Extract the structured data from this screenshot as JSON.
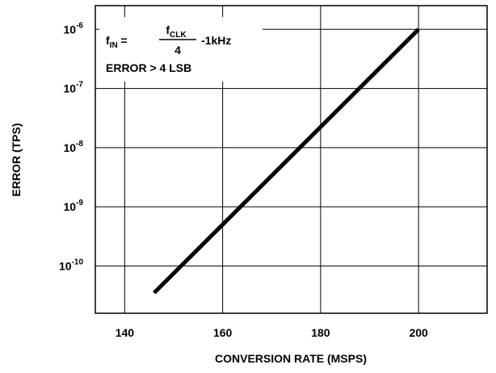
{
  "chart_data": {
    "type": "line",
    "title": "",
    "xlabel": "CONVERSION RATE (MSPS)",
    "ylabel": "ERROR (TPS)",
    "xlim": [
      134,
      214
    ],
    "ylim_exponent": [
      -10.8,
      -5.6
    ],
    "y_scale": "log",
    "grid": true,
    "x_ticks": [
      {
        "value": 140,
        "label": "140"
      },
      {
        "value": 160,
        "label": "160"
      },
      {
        "value": 180,
        "label": "180"
      },
      {
        "value": 200,
        "label": "200"
      }
    ],
    "y_ticks": [
      {
        "value": 1e-06,
        "base": "10",
        "exp": "-6"
      },
      {
        "value": 1e-07,
        "base": "10",
        "exp": "-7"
      },
      {
        "value": 1e-08,
        "base": "10",
        "exp": "-8"
      },
      {
        "value": 1e-09,
        "base": "10",
        "exp": "-9"
      },
      {
        "value": 1e-10,
        "base": "10",
        "exp": "-10"
      }
    ],
    "series": [
      {
        "x": [
          146,
          200
        ],
        "y": [
          3.5e-11,
          1e-06
        ],
        "color": "#000000"
      }
    ],
    "annotation": {
      "f_main": "f",
      "f_sub": "IN",
      "eq": " = ",
      "num_main": "f",
      "num_sub": "CLK",
      "den": "4",
      "suffix": "-1kHz",
      "line2": "ERROR > 4 LSB"
    }
  }
}
